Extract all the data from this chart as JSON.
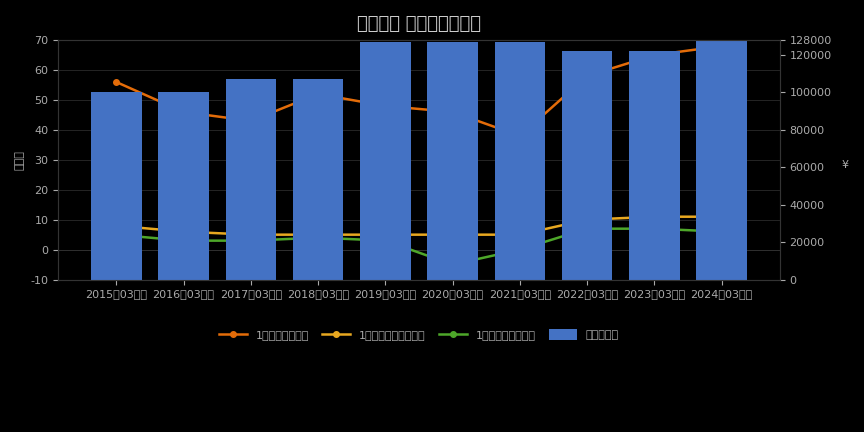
{
  "title": "生産効率 財務指標・数値",
  "categories": [
    "2015年03月期",
    "2016年03月期",
    "2017年03月期",
    "2018年03月期",
    "2019年03月期",
    "2020年03月期",
    "2021年03月期",
    "2022年03月期",
    "2023年03月期",
    "2024年03月期"
  ],
  "bar_values": [
    100000,
    100000,
    107000,
    107000,
    127000,
    127000,
    127000,
    122000,
    122000,
    128000
  ],
  "bar_color": "#4472c4",
  "line1_values": [
    56,
    46,
    43,
    52,
    48,
    46,
    38,
    58,
    65,
    68
  ],
  "line1_color": "#e36c09",
  "line1_label": "1人あたり売上高",
  "line2_values": [
    8,
    6,
    5,
    5,
    5,
    5,
    5,
    10,
    11,
    11
  ],
  "line2_color": "#e8a820",
  "line2_label": "1人あたり売上総利益",
  "line3_values": [
    5,
    3,
    3,
    4,
    3,
    -5,
    0,
    7,
    7,
    6
  ],
  "line3_color": "#4ea72a",
  "line3_label": "1人あたり経常利益",
  "bar_label": "総従業員数",
  "ylabel_left": "億万円",
  "ylabel_right": "¥",
  "ylim_left": [
    -10,
    70
  ],
  "ylim_right": [
    0,
    128000
  ],
  "yticks_left": [
    -10,
    0,
    10,
    20,
    30,
    40,
    50,
    60,
    70
  ],
  "yticks_right": [
    0,
    20000,
    40000,
    60000,
    80000,
    100000,
    120000,
    128000
  ],
  "background_color": "#000000",
  "plot_bg_color": "#000000",
  "text_color": "#aaaaaa",
  "grid_color": "#333333",
  "title_color": "#cccccc",
  "title_fontsize": 13,
  "tick_fontsize": 8,
  "legend_fontsize": 8,
  "bar_width": 0.75
}
